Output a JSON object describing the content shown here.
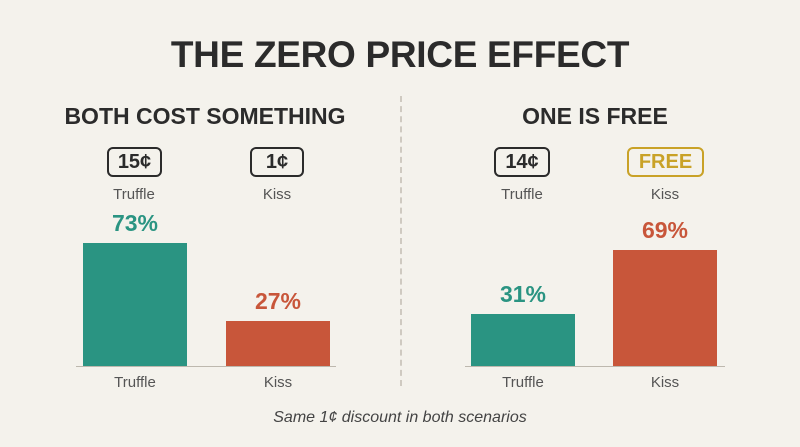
{
  "title": "THE ZERO PRICE EFFECT",
  "footnote": "Same 1¢ discount in both scenarios",
  "colors": {
    "truffle": "#2a9482",
    "kiss": "#c8563a",
    "free": "#c9a227"
  },
  "chart_data": [
    {
      "type": "bar",
      "title": "BOTH COST SOMETHING",
      "categories": [
        "Truffle",
        "Kiss"
      ],
      "prices": [
        "15¢",
        "1¢"
      ],
      "free_flags": [
        false,
        false
      ],
      "values": [
        73,
        27
      ],
      "value_labels": [
        "73%",
        "27%"
      ],
      "ylim": [
        0,
        100
      ]
    },
    {
      "type": "bar",
      "title": "ONE IS FREE",
      "categories": [
        "Truffle",
        "Kiss"
      ],
      "prices": [
        "14¢",
        "FREE"
      ],
      "free_flags": [
        false,
        true
      ],
      "values": [
        31,
        69
      ],
      "value_labels": [
        "31%",
        "69%"
      ],
      "ylim": [
        0,
        100
      ]
    }
  ]
}
